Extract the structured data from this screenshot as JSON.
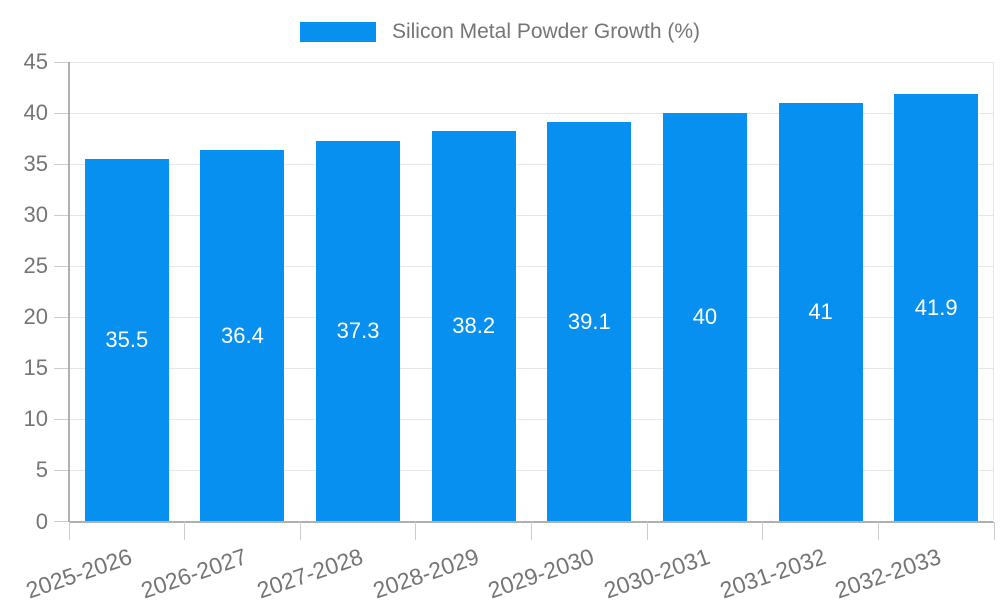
{
  "chart_data": {
    "type": "bar",
    "title": "",
    "legend": "Silicon Metal Powder Growth (%)",
    "legend_position": "top-center",
    "categories": [
      "2025-2026",
      "2026-2027",
      "2027-2028",
      "2028-2029",
      "2029-2030",
      "2030-2031",
      "2031-2032",
      "2032-2033"
    ],
    "values": [
      35.5,
      36.4,
      37.3,
      38.2,
      39.1,
      40,
      41,
      41.9
    ],
    "value_labels": [
      "35.5",
      "36.4",
      "37.3",
      "38.2",
      "39.1",
      "40",
      "41",
      "41.9"
    ],
    "value_label_position": "middle-of-bar",
    "xlabel": "",
    "ylabel": "",
    "ylim": [
      0,
      45
    ],
    "ytick_step": 5,
    "ytick_labels": [
      "0",
      "5",
      "10",
      "15",
      "20",
      "25",
      "30",
      "35",
      "40",
      "45"
    ],
    "grid": "horizontal",
    "colors": {
      "bar": "#0890f0",
      "grid": "#e6e6e6",
      "axis_line": "#b0b0b0",
      "tick": "#cccccc",
      "text": "#757575",
      "value_text": "#ffffff",
      "background": "#ffffff"
    }
  }
}
